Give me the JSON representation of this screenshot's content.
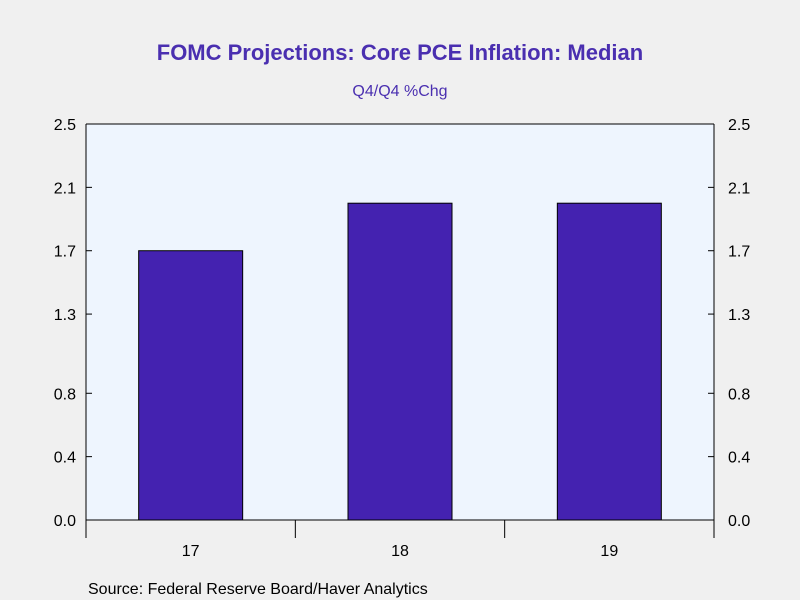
{
  "colors": {
    "background": "#f0f0f0",
    "plot_background": "#eef5fe",
    "bar_fill": "#4422b0",
    "title": "#4a2fb0",
    "axis": "#000000"
  },
  "source": "Source:  Federal Reserve Board/Haver Analytics",
  "chart_data": {
    "type": "bar",
    "title": "FOMC Projections: Core PCE Inflation: Median",
    "subtitle": "Q4/Q4 %Chg",
    "xlabel": "",
    "ylabel": "",
    "categories": [
      "17",
      "18",
      "19"
    ],
    "values": [
      1.7,
      2.0,
      2.0
    ],
    "ylim": [
      0.0,
      2.5
    ],
    "y_ticks": [
      0.0,
      0.4,
      0.8,
      1.3,
      1.7,
      2.1,
      2.5
    ],
    "y_tick_labels": [
      "0.0",
      "0.4",
      "0.8",
      "1.3",
      "1.7",
      "2.1",
      "2.5"
    ],
    "dual_y_axis": true,
    "grid": false,
    "legend": "none"
  }
}
